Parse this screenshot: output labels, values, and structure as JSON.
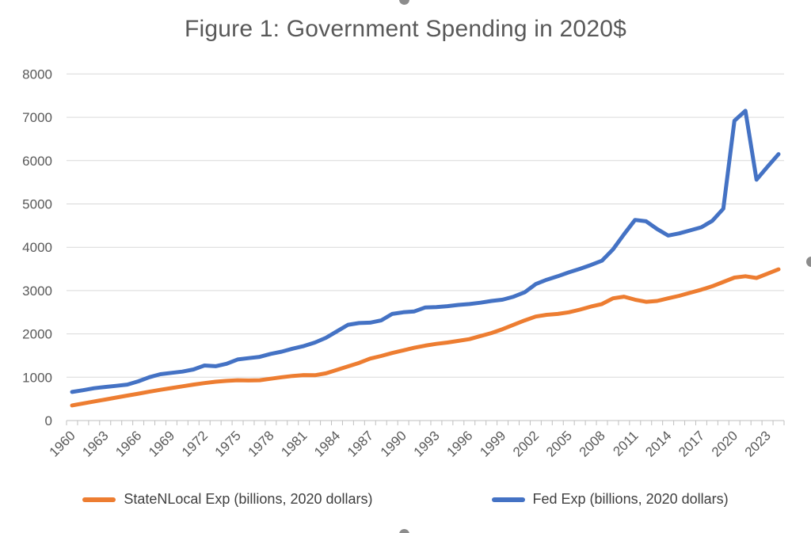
{
  "title": "Figure 1: Government Spending in 2020$",
  "chart_data": {
    "type": "line",
    "title": "Figure 1: Government Spending in 2020$",
    "xlabel": "",
    "ylabel": "",
    "grid": true,
    "legend_position": "bottom",
    "x": [
      1960,
      1961,
      1962,
      1963,
      1964,
      1965,
      1966,
      1967,
      1968,
      1969,
      1970,
      1971,
      1972,
      1973,
      1974,
      1975,
      1976,
      1977,
      1978,
      1979,
      1980,
      1981,
      1982,
      1983,
      1984,
      1985,
      1986,
      1987,
      1988,
      1989,
      1990,
      1991,
      1992,
      1993,
      1994,
      1995,
      1996,
      1997,
      1998,
      1999,
      2000,
      2001,
      2002,
      2003,
      2004,
      2005,
      2006,
      2007,
      2008,
      2009,
      2010,
      2011,
      2012,
      2013,
      2014,
      2015,
      2016,
      2017,
      2018,
      2019,
      2020,
      2021,
      2022,
      2023,
      2024
    ],
    "x_axis": {
      "tick_labels": [
        "1960",
        "1963",
        "1966",
        "1969",
        "1972",
        "1975",
        "1978",
        "1981",
        "1984",
        "1987",
        "1990",
        "1993",
        "1996",
        "1999",
        "2002",
        "2005",
        "2008",
        "2011",
        "2014",
        "2017",
        "2020",
        "2023"
      ],
      "tick_label_years": [
        1960,
        1963,
        1966,
        1969,
        1972,
        1975,
        1978,
        1981,
        1984,
        1987,
        1990,
        1993,
        1996,
        1999,
        2002,
        2005,
        2008,
        2011,
        2014,
        2017,
        2020,
        2023
      ],
      "label_rotation_deg": -45,
      "minor_ticks_every_year": true
    },
    "y_axis": {
      "min": 0,
      "max": 8000,
      "step": 1000,
      "tick_labels": [
        "0",
        "1000",
        "2000",
        "3000",
        "4000",
        "5000",
        "6000",
        "7000",
        "8000"
      ]
    },
    "series": [
      {
        "name": "StateNLocal Exp (billions, 2020 dollars)",
        "color": "#ED7D31",
        "values": [
          350,
          395,
          440,
          485,
          530,
          575,
          620,
          665,
          710,
          750,
          790,
          830,
          865,
          895,
          915,
          930,
          925,
          930,
          965,
          1000,
          1030,
          1050,
          1045,
          1090,
          1170,
          1250,
          1330,
          1430,
          1490,
          1560,
          1620,
          1680,
          1730,
          1770,
          1800,
          1840,
          1880,
          1950,
          2020,
          2110,
          2210,
          2310,
          2400,
          2440,
          2460,
          2500,
          2560,
          2630,
          2690,
          2820,
          2860,
          2790,
          2740,
          2760,
          2820,
          2880,
          2950,
          3020,
          3100,
          3200,
          3300,
          3330,
          3290,
          3390,
          3490
        ]
      },
      {
        "name": "Fed Exp (billions, 2020 dollars)",
        "color": "#4472C4",
        "values": [
          660,
          700,
          745,
          775,
          800,
          830,
          905,
          1000,
          1070,
          1100,
          1130,
          1180,
          1270,
          1255,
          1310,
          1410,
          1440,
          1470,
          1540,
          1590,
          1660,
          1720,
          1800,
          1910,
          2060,
          2210,
          2250,
          2260,
          2310,
          2460,
          2500,
          2520,
          2610,
          2620,
          2640,
          2670,
          2690,
          2720,
          2760,
          2790,
          2860,
          2960,
          3150,
          3250,
          3330,
          3420,
          3500,
          3590,
          3690,
          3950,
          4300,
          4630,
          4600,
          4420,
          4270,
          4320,
          4390,
          4460,
          4610,
          4890,
          6920,
          7150,
          5560,
          5860,
          6150
        ]
      }
    ],
    "style": {
      "gridline_color": "#D9D9D9",
      "axis_color": "#BFBFBF",
      "tick_color": "#BFBFBF",
      "axis_label_color": "#595959",
      "title_color": "#595959",
      "legend_text_color": "#404040",
      "line_width": 5
    }
  },
  "selection_handles": {
    "top": "resize-handle",
    "right": "resize-handle",
    "bottom": "resize-handle"
  }
}
